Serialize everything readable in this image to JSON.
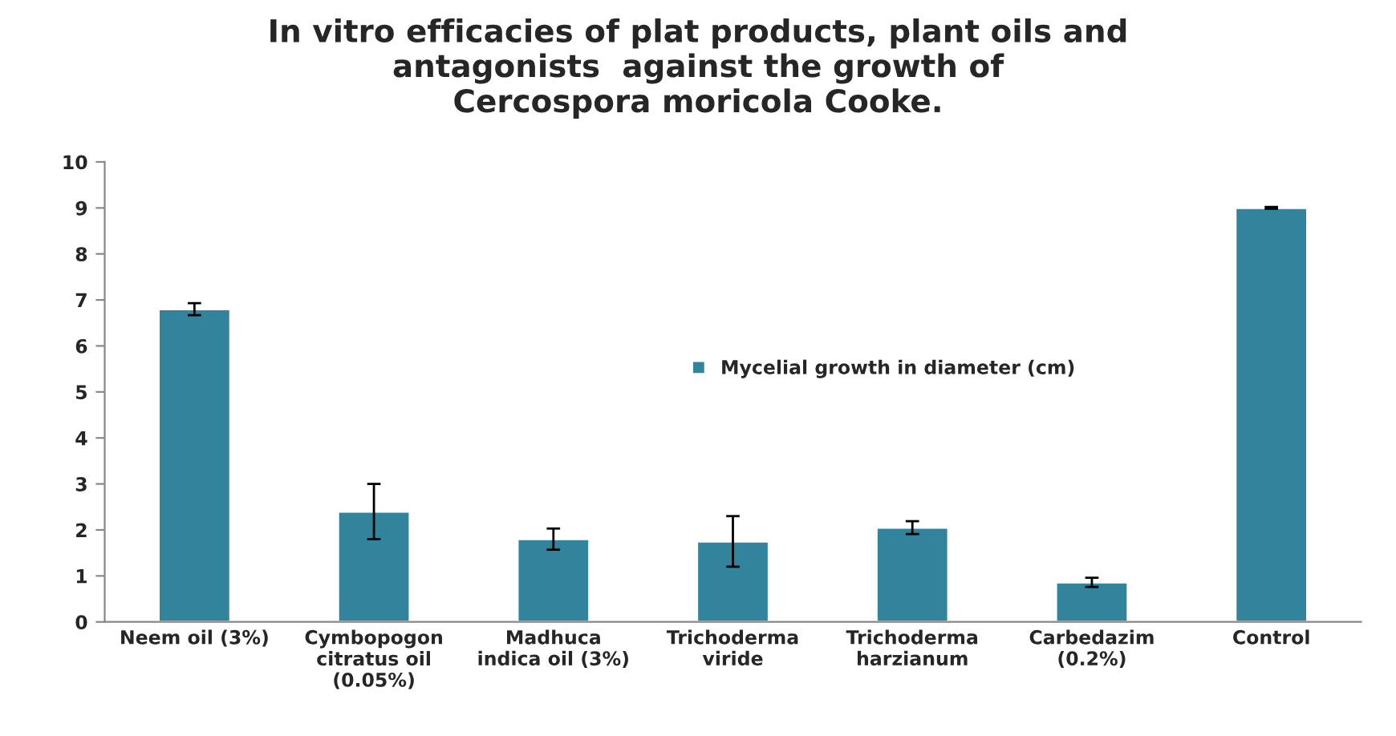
{
  "chart_data": {
    "type": "bar",
    "title": "In vitro efficacies of plat products, plant oils and\nantagonists  against the growth of\nCercospora moricola Cooke.",
    "categories": [
      "Neem oil (3%)",
      "Cymbopogon\ncitratus oil\n(0.05%)",
      "Madhuca\nindica oil (3%)",
      "Trichoderma\nviride",
      "Trichoderma\nharzianum",
      "Carbedazim\n(0.2%)",
      "Control"
    ],
    "series": [
      {
        "name": "Mycelial growth in diameter (cm)",
        "color": "#31849b",
        "values": [
          6.8,
          2.4,
          1.8,
          1.75,
          2.05,
          0.86,
          9.0
        ],
        "errors": [
          0.13,
          0.6,
          0.23,
          0.55,
          0.14,
          0.1,
          0.02
        ]
      }
    ],
    "ylim": [
      0,
      10
    ],
    "yticks": [
      0,
      1,
      2,
      3,
      4,
      5,
      6,
      7,
      8,
      9,
      10
    ],
    "grid": false,
    "legend": "center"
  }
}
